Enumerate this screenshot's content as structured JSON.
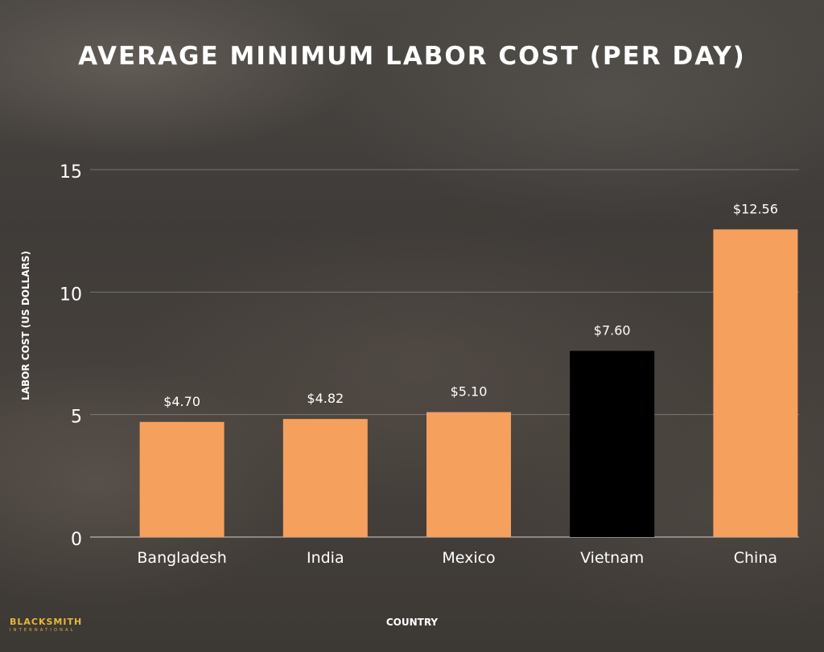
{
  "chart_data": {
    "type": "bar",
    "title": "AVERAGE MINIMUM LABOR COST (PER DAY)",
    "xlabel": "COUNTRY",
    "ylabel": "LABOR COST (US DOLLARS)",
    "ylim": [
      0,
      15
    ],
    "yticks": [
      0,
      5,
      10,
      15
    ],
    "grid": true,
    "categories": [
      "Bangladesh",
      "India",
      "Mexico",
      "Vietnam",
      "China"
    ],
    "values": [
      4.7,
      4.82,
      5.1,
      7.6,
      12.56
    ],
    "data_labels": [
      "$4.70",
      "$4.82",
      "$5.10",
      "$7.60",
      "$12.56"
    ],
    "bar_colors": [
      "#f6a05d",
      "#f6a05d",
      "#f6a05d",
      "#000000",
      "#f6a05d"
    ]
  },
  "branding": {
    "logo_name": "BLACKSMITH",
    "logo_sub": "INTERNATIONAL"
  }
}
